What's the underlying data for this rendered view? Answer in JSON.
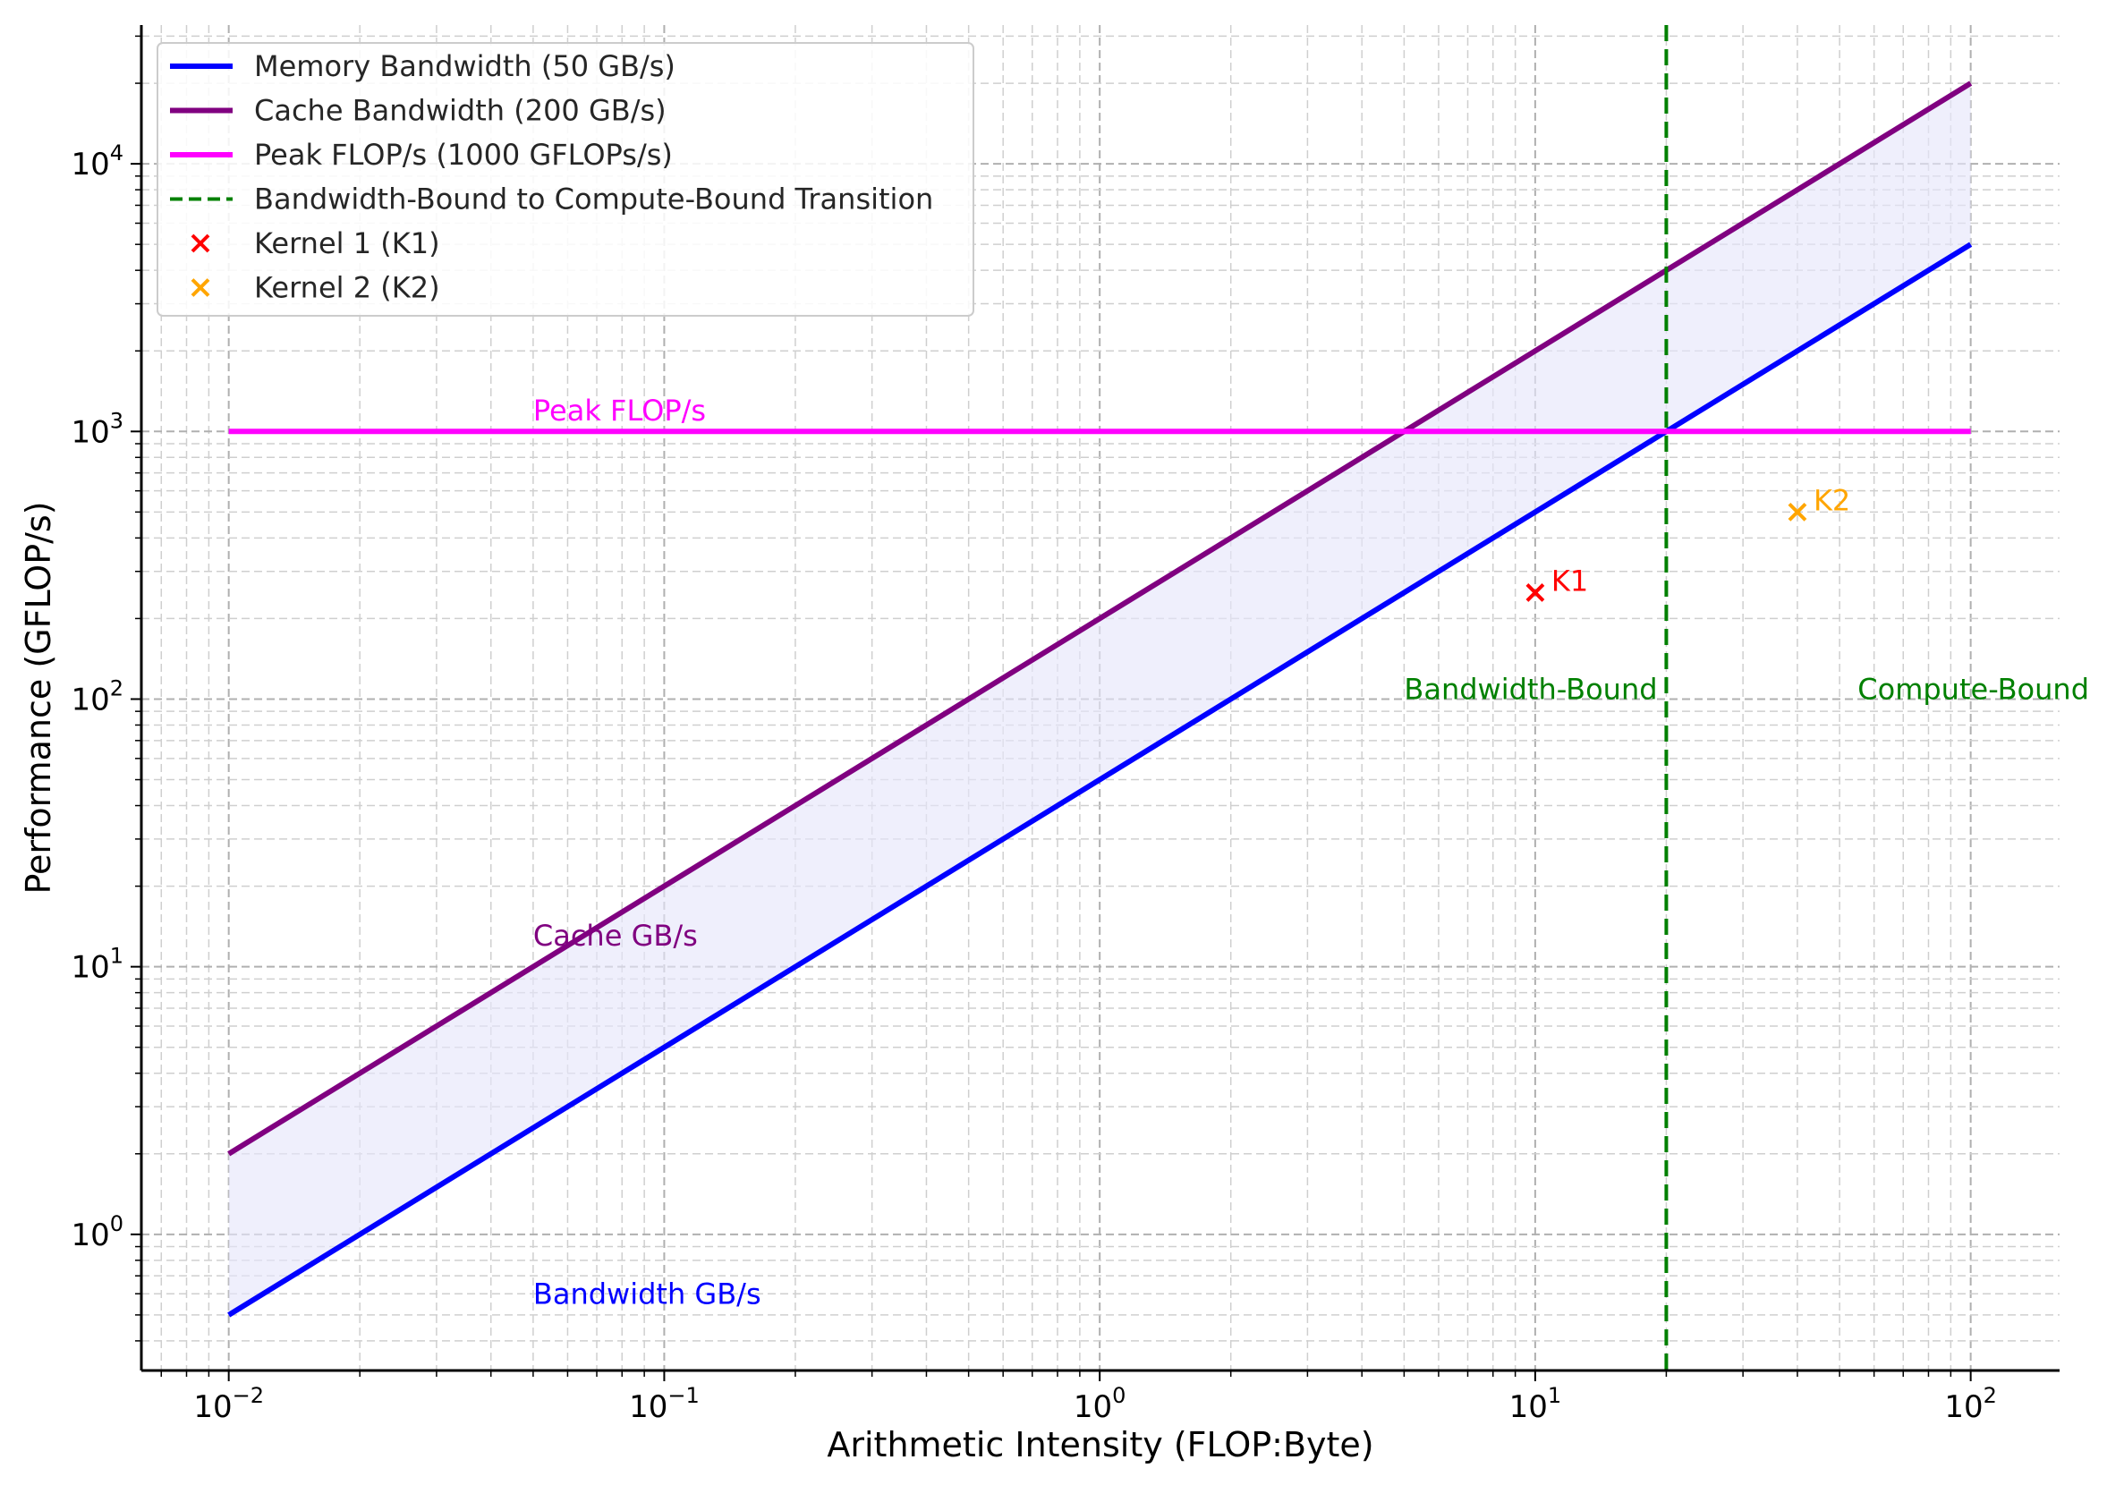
{
  "chart_data": {
    "type": "line",
    "scale": {
      "x": "log",
      "y": "log"
    },
    "xlabel": "Arithmetic Intensity (FLOP:Byte)",
    "ylabel": "Performance (GFLOP/s)",
    "xlim": [
      0.0063,
      160
    ],
    "ylim": [
      0.31,
      33000
    ],
    "grid": true,
    "legend_position": "top-left",
    "x_ticks": [
      {
        "base": "10",
        "exp": "−2",
        "value": 0.01
      },
      {
        "base": "10",
        "exp": "−1",
        "value": 0.1
      },
      {
        "base": "10",
        "exp": "0",
        "value": 1
      },
      {
        "base": "10",
        "exp": "1",
        "value": 10
      },
      {
        "base": "10",
        "exp": "2",
        "value": 100
      }
    ],
    "y_ticks": [
      {
        "base": "10",
        "exp": "0",
        "value": 1
      },
      {
        "base": "10",
        "exp": "1",
        "value": 10
      },
      {
        "base": "10",
        "exp": "2",
        "value": 100
      },
      {
        "base": "10",
        "exp": "3",
        "value": 1000
      },
      {
        "base": "10",
        "exp": "4",
        "value": 10000
      }
    ],
    "series": [
      {
        "name": "Memory Bandwidth (50 GB/s)",
        "kind": "line",
        "color": "#0000ff",
        "x": [
          0.01,
          100
        ],
        "y": [
          0.5,
          5000
        ]
      },
      {
        "name": "Cache Bandwidth (200 GB/s)",
        "kind": "line",
        "color": "#800080",
        "x": [
          0.01,
          100
        ],
        "y": [
          2,
          20000
        ]
      },
      {
        "name": "Peak FLOP/s (1000 GFLOPs/s)",
        "kind": "line",
        "color": "#ff00ff",
        "x": [
          0.01,
          100
        ],
        "y": [
          1000,
          1000
        ]
      },
      {
        "name": "Bandwidth-Bound to Compute-Bound Transition",
        "kind": "vline",
        "color": "#008000",
        "x": 20
      },
      {
        "name": "Kernel 1 (K1)",
        "kind": "marker",
        "color": "#ff0000",
        "x": 10,
        "y": 250,
        "label": "K1"
      },
      {
        "name": "Kernel 2 (K2)",
        "kind": "marker",
        "color": "#ffa500",
        "x": 40,
        "y": 500,
        "label": "K2"
      }
    ],
    "fill_between": {
      "x": [
        0.01,
        100
      ],
      "y_low": [
        0.5,
        5000
      ],
      "y_high": [
        2,
        20000
      ],
      "color": "#e6e6fa"
    },
    "annotations": [
      {
        "text": "Peak FLOP/s",
        "x": 0.05,
        "y": 1100,
        "color": "#ff00ff"
      },
      {
        "text": "Cache GB/s",
        "x": 0.05,
        "y": 12,
        "color": "#800080"
      },
      {
        "text": "Bandwidth GB/s",
        "x": 0.05,
        "y": 0.55,
        "color": "#0000ff"
      },
      {
        "text": "Bandwidth-Bound",
        "x": 5,
        "y": 100,
        "color": "#008000"
      },
      {
        "text": "Compute-Bound",
        "x": 55,
        "y": 100,
        "color": "#008000"
      }
    ]
  }
}
